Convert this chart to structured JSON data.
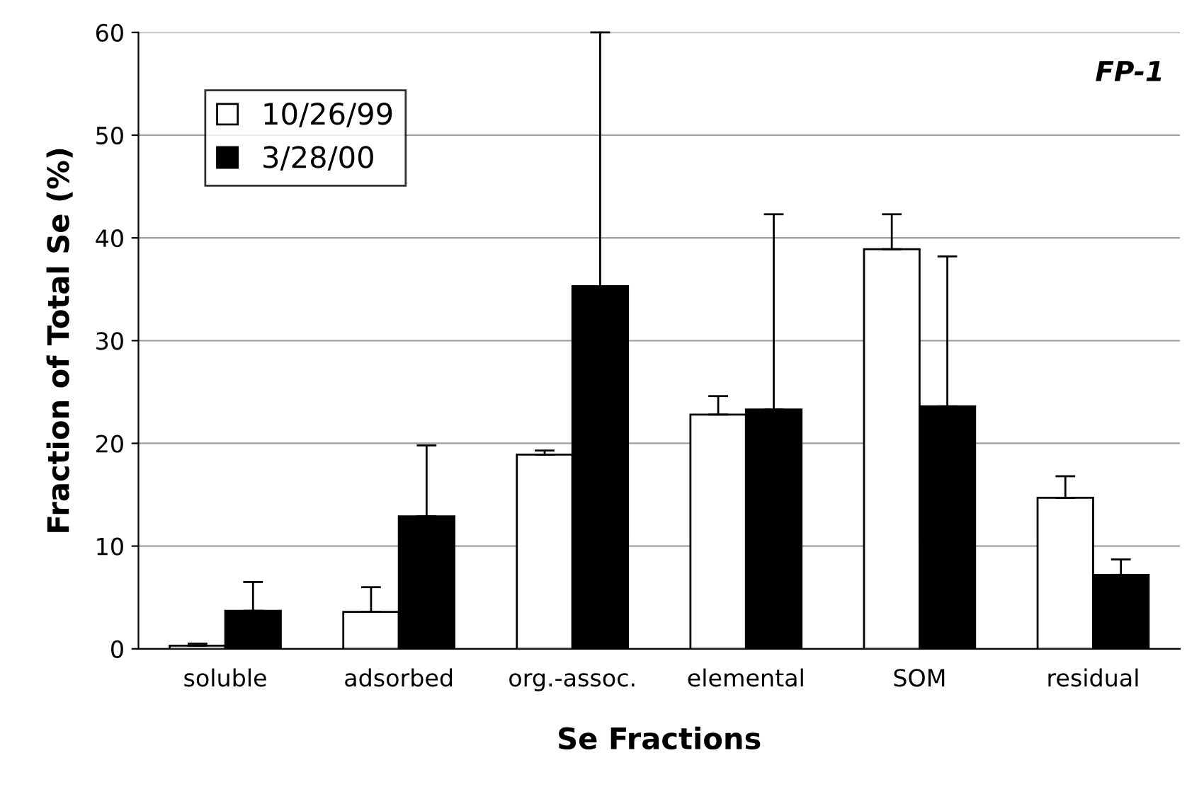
{
  "chart_data": {
    "type": "bar",
    "xlabel": "Se Fractions",
    "ylabel": "Fraction of Total Se (%)",
    "categories": [
      "soluble",
      "adsorbed",
      "org.-assoc.",
      "elemental",
      "SOM",
      "residual"
    ],
    "series": [
      {
        "name": "10/26/99",
        "color": "#ffffff",
        "values": [
          0.3,
          3.6,
          18.9,
          22.8,
          38.9,
          14.7
        ],
        "errors": [
          [
            0.3,
            0.5
          ],
          [
            3.6,
            6.0
          ],
          [
            18.9,
            19.3
          ],
          [
            22.8,
            24.6
          ],
          [
            38.9,
            42.3
          ],
          [
            14.7,
            16.8
          ]
        ]
      },
      {
        "name": "3/28/00",
        "color": "#000000",
        "values": [
          3.7,
          12.9,
          35.3,
          23.3,
          23.6,
          7.2
        ],
        "errors": [
          [
            3.7,
            6.5
          ],
          [
            12.9,
            19.8
          ],
          [
            35.3,
            60
          ],
          [
            23.3,
            42.3
          ],
          [
            23.6,
            38.2
          ],
          [
            7.2,
            8.7
          ]
        ]
      }
    ],
    "ylim": [
      0,
      60
    ],
    "yticks": [
      0,
      10,
      20,
      30,
      40,
      50,
      60
    ],
    "grid": "y",
    "legend": "top left",
    "annotations": [
      "FP-1"
    ]
  }
}
